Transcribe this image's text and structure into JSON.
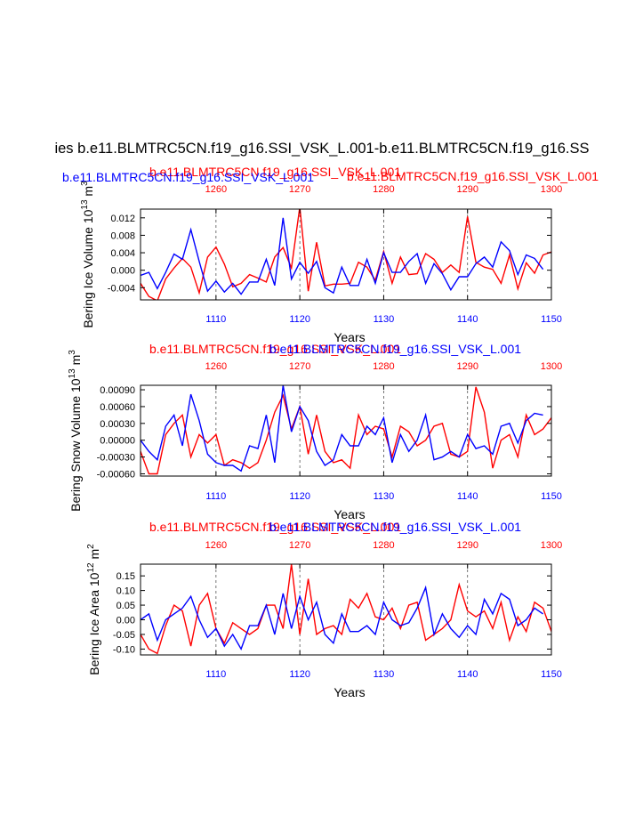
{
  "page_title": "ies b.e11.BLMTRC5CN.f19_g16.SSI_VSK_L.001-b.e11.BLMTRC5CN.f19_g16.SS",
  "header_overlap": {
    "red_line": "b.e11.BLMTRC5CN.f19_g16.SSI_VSK_L.001",
    "blue_line": "b.e11.BLMTRC5CN.f19_g16.SSI_VSK_L.001",
    "red_right": "b.e11.BLMTRC5CN.f19_g16.SSI_VSK_L.001"
  },
  "colors": {
    "series_red": "#ff0000",
    "series_blue": "#0000ff",
    "axis": "#000000"
  },
  "chart_data": [
    {
      "type": "line",
      "id": "ice-volume",
      "title_red": "b.e11.BLMTRC5CN.f19_g16.SSI_VSK_L.001",
      "title_blue": "b.e11.BLMTRC5CN.f19_g16.SSI_VSK_L.001",
      "ylabel": "Bering Ice Volume 10",
      "ylabel_exp": "13",
      "ylabel_unit": " m",
      "ylabel_unit_exp": "3",
      "xlabel": "Years",
      "xlim_bottom": [
        1101,
        1150
      ],
      "xlim_top": [
        1251,
        1300
      ],
      "xticks_bottom": [
        "1110",
        "1120",
        "1130",
        "1140",
        "1150"
      ],
      "xticks_top": [
        "1260",
        "1270",
        "1280",
        "1290",
        "1300"
      ],
      "ylim": [
        -0.0068,
        0.014
      ],
      "yticks": [
        -0.004,
        0.0,
        0.004,
        0.008,
        0.012
      ],
      "ytick_labels": [
        "-0.004",
        "0.000",
        "0.004",
        "0.008",
        "0.012"
      ],
      "series": [
        {
          "name": "b.e11.BLMTRC5CN.f19_g16.SSI_VSK_L.001 (red, top axis)",
          "color": "#ff0000",
          "values": [
            -0.003,
            -0.006,
            -0.007,
            -0.002,
            0.0005,
            0.0027,
            0.0007,
            -0.0052,
            0.003,
            0.0053,
            0.0014,
            -0.0038,
            -0.003,
            -0.001,
            -0.0018,
            -0.0027,
            0.003,
            0.0052,
            0.0005,
            0.0145,
            -0.0048,
            0.0064,
            -0.0036,
            -0.0032,
            -0.0032,
            -0.003,
            0.0018,
            0.0007,
            -0.0023,
            0.0043,
            -0.003,
            0.003,
            -0.001,
            -0.0008,
            0.0038,
            0.0025,
            -0.0005,
            0.0012,
            -0.0005,
            0.0123,
            0.0018,
            0.0007,
            0.0002,
            -0.003,
            0.0035,
            -0.0043,
            0.0017,
            -0.0007,
            0.0035,
            0.0042,
            -0.0035
          ]
        },
        {
          "name": "b.e11.BLMTRC5CN.f19_g16.SSI_VSK_L.001 (blue, bottom axis)",
          "color": "#0000ff",
          "values": [
            -0.0012,
            -0.0005,
            -0.0042,
            -0.0005,
            0.0037,
            0.0025,
            0.0093,
            0.002,
            -0.0048,
            -0.0025,
            -0.005,
            -0.003,
            -0.0055,
            -0.0027,
            -0.0027,
            0.0025,
            -0.0035,
            0.012,
            -0.002,
            0.0018,
            -0.0007,
            0.002,
            -0.004,
            -0.0052,
            0.0007,
            -0.0035,
            -0.0035,
            0.0025,
            -0.003,
            0.004,
            -0.0005,
            -0.0005,
            0.002,
            0.0038,
            -0.003,
            0.0015,
            -0.0008,
            -0.0045,
            -0.0015,
            -0.0015,
            0.0015,
            0.003,
            0.0007,
            0.0065,
            0.0045,
            -0.001,
            0.0035,
            0.0027,
            0.0002
          ]
        }
      ]
    },
    {
      "type": "line",
      "id": "snow-volume",
      "title_red": "b.e11.BLMTRC5CN.f19_g16.SSI_VSK_L.001",
      "title_blue": "b.e11.BLMTRC5CN.f19_g16.SSI_VSK_L.001",
      "ylabel": "Bering Snow Volume 10",
      "ylabel_exp": "13",
      "ylabel_unit": " m",
      "ylabel_unit_exp": "3",
      "xlabel": "Years",
      "xlim_bottom": [
        1101,
        1150
      ],
      "xlim_top": [
        1251,
        1300
      ],
      "xticks_bottom": [
        "1110",
        "1120",
        "1130",
        "1140",
        "1150"
      ],
      "xticks_top": [
        "1260",
        "1270",
        "1280",
        "1290",
        "1300"
      ],
      "ylim": [
        -0.00064,
        0.00098
      ],
      "yticks": [
        -0.0006,
        -0.0003,
        0.0,
        0.0003,
        0.0006,
        0.0009
      ],
      "ytick_labels": [
        "-0.00060",
        "-0.00030",
        "0.00000",
        "0.00030",
        "0.00060",
        "0.00090"
      ],
      "series": [
        {
          "name": "b.e11.BLMTRC5CN.f19_g16.SSI_VSK_L.001 (red, top axis)",
          "color": "#ff0000",
          "values": [
            -0.0002,
            -0.0006,
            -0.0006,
            0.0001,
            0.0003,
            0.00045,
            -0.0003,
            0.0001,
            -5e-05,
            0.0001,
            -0.00045,
            -0.00035,
            -0.0004,
            -0.0005,
            -0.0004,
            0.0,
            0.0005,
            0.0008,
            0.0002,
            0.0006,
            -0.00025,
            0.00045,
            -0.0002,
            -0.0004,
            -0.00035,
            -0.0005,
            0.00045,
            0.0001,
            0.00025,
            0.0002,
            -0.0003,
            0.00025,
            0.00015,
            -0.0001,
            0.0,
            0.00025,
            0.0003,
            -0.00025,
            -0.0003,
            -0.0002,
            0.00095,
            0.0005,
            -0.0005,
            0.0,
            0.0001,
            -0.0003,
            0.00045,
            0.0001,
            0.0002,
            0.0004,
            -0.00015
          ]
        },
        {
          "name": "b.e11.BLMTRC5CN.f19_g16.SSI_VSK_L.001 (blue, bottom axis)",
          "color": "#0000ff",
          "values": [
            0.0,
            -0.0002,
            -0.00035,
            0.00025,
            0.00045,
            -0.0001,
            0.00082,
            0.00035,
            -0.00025,
            -0.0004,
            -0.00045,
            -0.00045,
            -0.00055,
            -0.0001,
            -0.00015,
            0.00045,
            -0.0004,
            0.00098,
            0.00015,
            0.0006,
            0.00035,
            -0.0002,
            -0.00045,
            -0.00035,
            0.0001,
            -0.0001,
            -0.0001,
            0.00025,
            0.0001,
            0.0004,
            -0.0004,
            0.0001,
            -0.0002,
            0.0,
            0.00045,
            -0.00035,
            -0.0003,
            -0.0002,
            -0.0003,
            0.0001,
            -0.00015,
            -0.0001,
            -0.00025,
            0.00025,
            0.0003,
            -5e-05,
            0.00035,
            0.00048,
            0.00045
          ]
        }
      ]
    },
    {
      "type": "line",
      "id": "ice-area",
      "title_red": "b.e11.BLMTRC5CN.f19_g16.SSI_VSK_L.001",
      "title_blue": "b.e11.BLMTRC5CN.f19_g16.SSI_VSK_L.001",
      "ylabel": "Bering Ice Area 10",
      "ylabel_exp": "12",
      "ylabel_unit": " m",
      "ylabel_unit_exp": "2",
      "xlabel": "Years",
      "xlim_bottom": [
        1101,
        1150
      ],
      "xlim_top": [
        1251,
        1300
      ],
      "xticks_bottom": [
        "1110",
        "1120",
        "1130",
        "1140",
        "1150"
      ],
      "xticks_top": [
        "1260",
        "1270",
        "1280",
        "1290",
        "1300"
      ],
      "ylim": [
        -0.12,
        0.19
      ],
      "yticks": [
        -0.1,
        -0.05,
        0.0,
        0.05,
        0.1,
        0.15
      ],
      "ytick_labels": [
        "-0.10",
        "-0.05",
        "0.00",
        "0.05",
        "0.10",
        "0.15"
      ],
      "series": [
        {
          "name": "b.e11.BLMTRC5CN.f19_g16.SSI_VSK_L.001 (red, top axis)",
          "color": "#ff0000",
          "values": [
            -0.05,
            -0.1,
            -0.115,
            -0.02,
            0.05,
            0.03,
            -0.09,
            0.05,
            0.09,
            -0.03,
            -0.08,
            -0.01,
            -0.03,
            -0.05,
            -0.03,
            0.05,
            0.05,
            -0.03,
            0.19,
            -0.05,
            0.14,
            -0.05,
            -0.03,
            -0.02,
            -0.05,
            0.07,
            0.04,
            0.09,
            0.01,
            0.0,
            0.04,
            -0.03,
            0.05,
            0.06,
            -0.07,
            -0.05,
            -0.03,
            0.0,
            0.12,
            0.03,
            0.01,
            0.03,
            -0.03,
            0.06,
            -0.07,
            0.01,
            -0.04,
            0.06,
            0.04,
            -0.04
          ]
        },
        {
          "name": "b.e11.BLMTRC5CN.f19_g16.SSI_VSK_L.001 (blue, bottom axis)",
          "color": "#0000ff",
          "values": [
            0.0,
            0.02,
            -0.07,
            0.0,
            0.02,
            0.04,
            0.08,
            0.0,
            -0.06,
            -0.03,
            -0.09,
            -0.05,
            -0.1,
            -0.02,
            -0.02,
            0.05,
            -0.05,
            0.09,
            -0.03,
            0.08,
            0.0,
            0.06,
            -0.05,
            -0.08,
            0.02,
            -0.04,
            -0.04,
            -0.02,
            -0.05,
            0.06,
            0.0,
            -0.02,
            -0.01,
            0.04,
            0.11,
            -0.05,
            0.02,
            -0.03,
            -0.06,
            -0.02,
            -0.05,
            0.07,
            0.02,
            0.09,
            0.07,
            -0.02,
            0.0,
            0.04,
            0.02
          ]
        }
      ]
    }
  ]
}
